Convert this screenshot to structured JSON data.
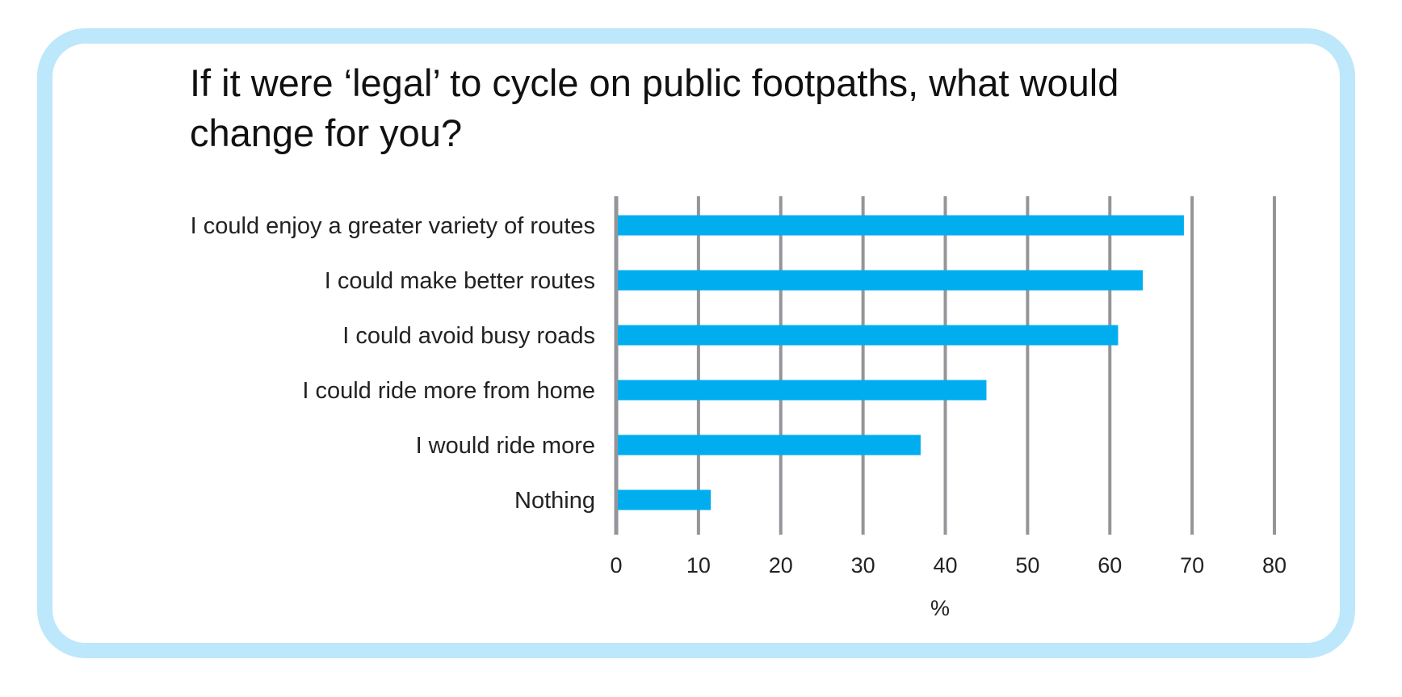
{
  "chart_data": {
    "type": "bar",
    "orientation": "horizontal",
    "title": "If it were ‘legal’ to cycle on public footpaths, what would change for you?",
    "categories": [
      "I could enjoy a greater variety of routes",
      "I could make better routes",
      "I could avoid busy roads",
      "I could ride more from home",
      "I would ride more",
      "Nothing"
    ],
    "values": [
      69,
      64,
      61,
      45,
      37,
      11.5
    ],
    "xlabel": "%",
    "ylabel": "",
    "xlim": [
      0,
      80
    ],
    "xticks": [
      "0",
      "10",
      "20",
      "30",
      "40",
      "50",
      "60",
      "70",
      "80"
    ],
    "grid": "vertical",
    "legend": "none",
    "colors": {
      "bar": "#00aeef",
      "grid": "#939598",
      "frame": "#bde7fb"
    }
  }
}
